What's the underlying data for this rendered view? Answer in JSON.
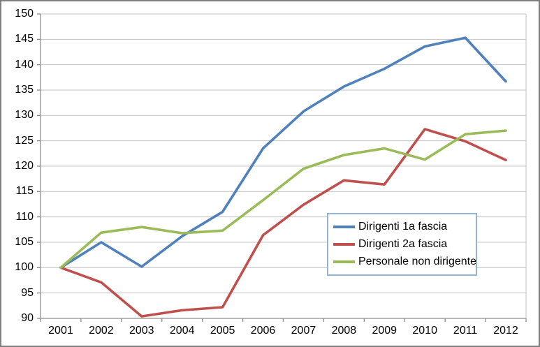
{
  "chart_data": {
    "type": "line",
    "title": "",
    "xlabel": "",
    "ylabel": "",
    "categories": [
      "2001",
      "2002",
      "2003",
      "2004",
      "2005",
      "2006",
      "2007",
      "2008",
      "2009",
      "2010",
      "2011",
      "2012"
    ],
    "series": [
      {
        "name": "Dirigenti 1a fascia",
        "color": "#4F81BD",
        "values": [
          100,
          105,
          100.2,
          106.2,
          111,
          123.5,
          130.8,
          135.7,
          139.2,
          143.6,
          145.3,
          136.7
        ]
      },
      {
        "name": "Dirigenti 2a fascia",
        "color": "#C0504D",
        "values": [
          100,
          97.1,
          90.4,
          91.6,
          92.2,
          106.4,
          112.4,
          117.2,
          116.4,
          127.3,
          124.9,
          121.2
        ]
      },
      {
        "name": "Personale non dirigente",
        "color": "#9BBB59",
        "values": [
          100,
          106.9,
          108,
          106.8,
          107.3,
          113.3,
          119.5,
          122.2,
          123.5,
          121.3,
          126.3,
          127
        ]
      }
    ],
    "ylim": [
      90,
      150
    ],
    "yticks": [
      90,
      95,
      100,
      105,
      110,
      115,
      120,
      125,
      130,
      135,
      140,
      145,
      150
    ],
    "grid": true,
    "legend_position": "inside-right",
    "colors": {
      "gridline": "#C3C3C3",
      "axis": "#8F8F8F",
      "legend_border": "#95B3D7",
      "frame_border": "#7F7F7F",
      "background": "#FFFFFF"
    }
  }
}
